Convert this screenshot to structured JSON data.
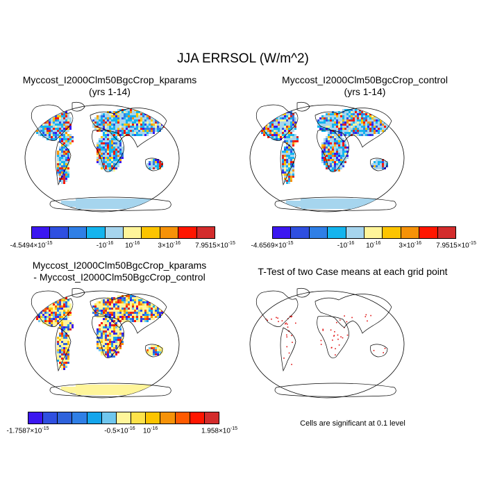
{
  "title": "JJA ERRSOL (W/m^2)",
  "panels": [
    {
      "title_line1": "Myccost_I2000Clm50BgcCrop_kparams",
      "title_line2": "(yrs 1-14)",
      "colorbar": {
        "colors": [
          "#3b17f0",
          "#2f4fe0",
          "#2f7fe6",
          "#14b4ee",
          "#a6d5ee",
          "#fff59a",
          "#fcc400",
          "#f69208",
          "#ff1600",
          "#d32c2c"
        ],
        "labels": [
          "-4.5494×10",
          "-10",
          "10",
          "3×10",
          "7.9515×10"
        ],
        "exponents": [
          "-15",
          "-16",
          "-16",
          "-16",
          "-15"
        ]
      }
    },
    {
      "title_line1": "Myccost_I2000Clm50BgcCrop_control",
      "title_line2": "(yrs 1-14)",
      "colorbar": {
        "colors": [
          "#3b17f0",
          "#2f4fe0",
          "#2f7fe6",
          "#14b4ee",
          "#a6d5ee",
          "#fff59a",
          "#fcc400",
          "#f69208",
          "#ff1600",
          "#d32c2c"
        ],
        "labels": [
          "-4.6569×10",
          "-10",
          "10",
          "3×10",
          "7.9515×10"
        ],
        "exponents": [
          "-15",
          "-16",
          "-16",
          "-16",
          "-15"
        ]
      }
    },
    {
      "title_line1": "Myccost_I2000Clm50BgcCrop_kparams",
      "title_line2": "- Myccost_I2000Clm50BgcCrop_control",
      "colorbar": {
        "colors": [
          "#3b17f0",
          "#2f4fe0",
          "#2e62dc",
          "#2f7fe6",
          "#14a5ec",
          "#6fc6ee",
          "#fff59a",
          "#fde24a",
          "#fcc400",
          "#f69208",
          "#ff5a00",
          "#ff1600",
          "#d32c2c"
        ],
        "labels": [
          "-1.7587×10",
          "-0.5×10",
          "10",
          "1.958×10"
        ],
        "exponents": [
          "-15",
          "-16",
          "-16",
          "-15"
        ]
      }
    },
    {
      "title_line1": "T-Test of two Case means at each grid point",
      "title_line2": ""
    }
  ],
  "note": "Cells are significant at 0.1 level"
}
